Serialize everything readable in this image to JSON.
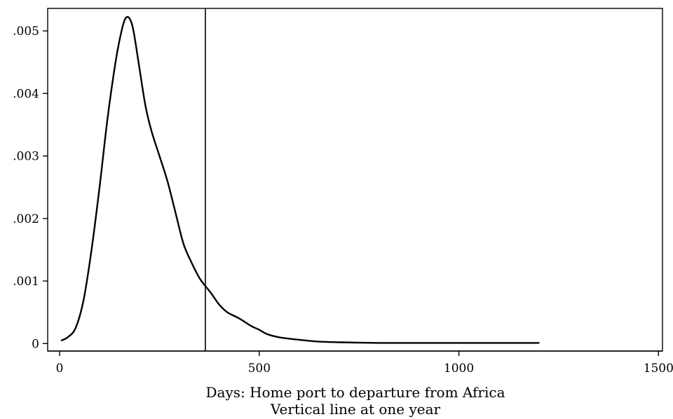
{
  "chart_data": {
    "type": "line",
    "title": "",
    "xlabel": "Days: Home port to departure from Africa",
    "xlabel_note": "Vertical line at one year",
    "ylabel": "",
    "xlim": [
      -30,
      1510
    ],
    "ylim": [
      -0.00012,
      0.00536
    ],
    "x_ticks": [
      0,
      500,
      1000,
      1500
    ],
    "x_tick_labels": [
      "0",
      "500",
      "1000",
      "1500"
    ],
    "y_ticks": [
      0,
      0.001,
      0.002,
      0.003,
      0.004,
      0.005
    ],
    "y_tick_labels": [
      "0",
      ".001",
      ".002",
      ".003",
      ".004",
      ".005"
    ],
    "grid": false,
    "line_color": "#000000",
    "reference_line": {
      "x": 365
    },
    "series": [
      {
        "x": [
          5,
          20,
          40,
          60,
          80,
          100,
          120,
          140,
          155,
          165,
          175,
          185,
          200,
          215,
          230,
          250,
          270,
          290,
          310,
          330,
          350,
          365,
          380,
          400,
          420,
          450,
          480,
          500,
          520,
          550,
          600,
          650,
          700,
          800,
          900,
          1000,
          1100,
          1200
        ],
        "y": [
          5e-05,
          0.0001,
          0.00025,
          0.0007,
          0.0015,
          0.0025,
          0.0036,
          0.0045,
          0.005,
          0.0052,
          0.0052,
          0.005,
          0.0044,
          0.0038,
          0.0034,
          0.003,
          0.0026,
          0.0021,
          0.0016,
          0.0013,
          0.00105,
          0.00092,
          0.0008,
          0.00062,
          0.0005,
          0.0004,
          0.00028,
          0.00022,
          0.00015,
          0.0001,
          6e-05,
          3e-05,
          2e-05,
          1e-05,
          1e-05,
          1e-05,
          1e-05,
          1e-05
        ]
      }
    ]
  }
}
